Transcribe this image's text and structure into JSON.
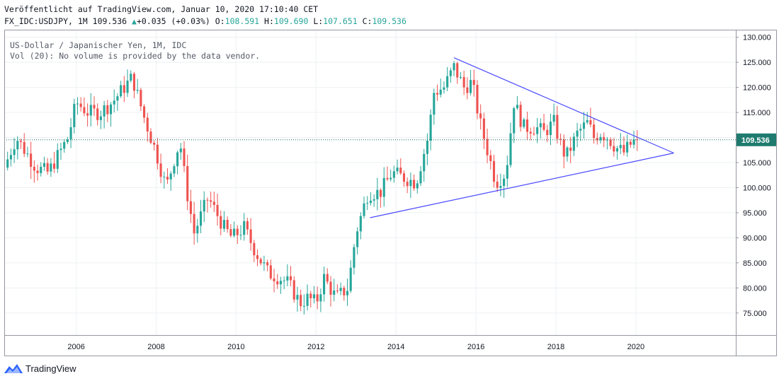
{
  "header": {
    "published": "Veröffentlicht auf TradingView.com, Januar 10, 2020 17:10:40 CET",
    "symbol": "FX_IDC:USDJPY, 1M",
    "last": "109.536",
    "change": "+0.035 (+0.03%)",
    "open_label": "O:",
    "open": "108.591",
    "high_label": "H:",
    "high": "109.690",
    "low_label": "L:",
    "low": "107.651",
    "close_label": "C:",
    "close": "109.536"
  },
  "legend": {
    "title": "US-Dollar / Japanischer Yen, 1M, IDC",
    "volume_note": "Vol (20): No volume is provided by the data vendor."
  },
  "footer": {
    "brand": "TradingView"
  },
  "colors": {
    "up": "#26a69a",
    "down": "#ef5350",
    "trendline": "#4a4aff",
    "grid": "#eef0f3",
    "axis_text": "#131722"
  },
  "chart_data": {
    "type": "candlestick",
    "x_axis": {
      "min": 2004.2,
      "max": 2022.5,
      "ticks": [
        2006,
        2008,
        2010,
        2012,
        2014,
        2016,
        2018,
        2020
      ]
    },
    "y_axis": {
      "min": 70.6,
      "max": 131.5,
      "ticks": [
        75,
        80,
        85,
        90,
        95,
        100,
        105,
        110,
        115,
        120,
        125,
        130
      ],
      "decimals": 3,
      "position": "right"
    },
    "last_price": {
      "value": 109.536,
      "label": "109.536"
    },
    "anchors": [
      [
        2004.2,
        104
      ],
      [
        2004.5,
        110
      ],
      [
        2005.0,
        104
      ],
      [
        2005.3,
        103
      ],
      [
        2005.8,
        110
      ],
      [
        2006.0,
        117
      ],
      [
        2006.3,
        115
      ],
      [
        2006.6,
        115
      ],
      [
        2006.9,
        117
      ],
      [
        2007.4,
        122
      ],
      [
        2007.7,
        114
      ],
      [
        2008.0,
        107
      ],
      [
        2008.25,
        100
      ],
      [
        2008.5,
        107
      ],
      [
        2008.6,
        109
      ],
      [
        2008.75,
        100
      ],
      [
        2008.95,
        91
      ],
      [
        2009.3,
        98
      ],
      [
        2009.7,
        92
      ],
      [
        2009.9,
        90
      ],
      [
        2010.2,
        92
      ],
      [
        2010.5,
        87
      ],
      [
        2010.8,
        83
      ],
      [
        2011.1,
        82
      ],
      [
        2011.3,
        81
      ],
      [
        2011.6,
        77
      ],
      [
        2011.8,
        78
      ],
      [
        2012.0,
        77
      ],
      [
        2012.2,
        82
      ],
      [
        2012.5,
        78
      ],
      [
        2012.8,
        80
      ],
      [
        2013.0,
        91
      ],
      [
        2013.3,
        99
      ],
      [
        2013.6,
        99
      ],
      [
        2013.9,
        103
      ],
      [
        2014.2,
        102
      ],
      [
        2014.5,
        101
      ],
      [
        2014.8,
        110
      ],
      [
        2014.95,
        119
      ],
      [
        2015.2,
        120
      ],
      [
        2015.45,
        124
      ],
      [
        2015.7,
        120
      ],
      [
        2015.9,
        121
      ],
      [
        2016.1,
        113
      ],
      [
        2016.3,
        107
      ],
      [
        2016.5,
        101
      ],
      [
        2016.75,
        103
      ],
      [
        2016.95,
        117
      ],
      [
        2017.2,
        112
      ],
      [
        2017.5,
        112
      ],
      [
        2017.7,
        111
      ],
      [
        2017.95,
        113
      ],
      [
        2018.1,
        109
      ],
      [
        2018.25,
        106
      ],
      [
        2018.55,
        111
      ],
      [
        2018.8,
        113
      ],
      [
        2018.95,
        110
      ],
      [
        2019.1,
        111
      ],
      [
        2019.3,
        110
      ],
      [
        2019.5,
        108
      ],
      [
        2019.7,
        107
      ],
      [
        2019.85,
        108.5
      ],
      [
        2020.0,
        109.5
      ]
    ],
    "trendlines": [
      {
        "name": "upper",
        "x1": 2015.45,
        "y1": 125.9,
        "x2": 2020.95,
        "y2": 106.9
      },
      {
        "name": "lower",
        "x1": 2013.35,
        "y1": 94.0,
        "x2": 2020.95,
        "y2": 106.9
      }
    ]
  }
}
